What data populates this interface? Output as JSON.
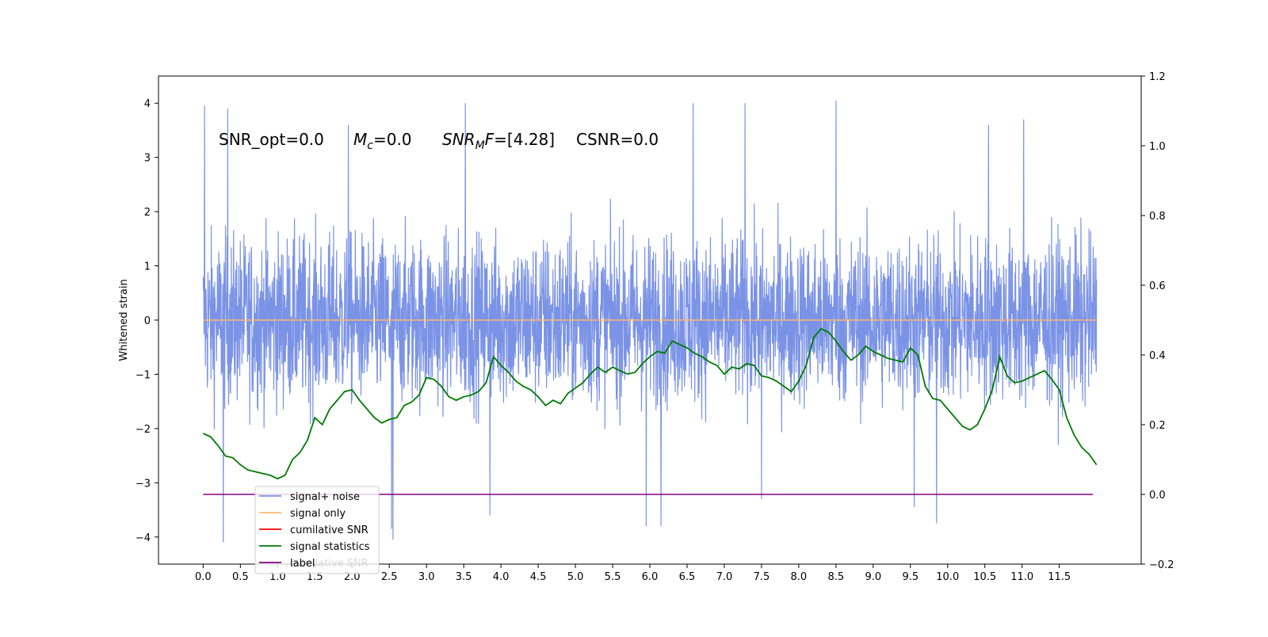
{
  "chart_data": {
    "type": "line",
    "title": "",
    "ylabel": "Whitened strain",
    "xlabel": "",
    "annotation": {
      "snr_opt": "SNR_opt=0.0",
      "mc_symbol": "M",
      "mc_sub": "c",
      "mc_value": "=0.0",
      "snr_mf_symbol": "SNR",
      "snr_mf_sub": "M",
      "snr_mf_f": "F",
      "snr_mf_value": "=[4.28]",
      "csnr": "CSNR=0.0"
    },
    "xlim": [
      -0.6,
      12.6
    ],
    "ylim_left": [
      -4.5,
      4.5
    ],
    "ylim_right": [
      -0.2,
      1.2
    ],
    "x_ticks": [
      0.0,
      0.5,
      1.0,
      1.5,
      2.0,
      2.5,
      3.0,
      3.5,
      4.0,
      4.5,
      5.0,
      5.5,
      6.0,
      6.5,
      7.0,
      7.5,
      8.0,
      8.5,
      9.0,
      9.5,
      10.0,
      10.5,
      11.0,
      11.5
    ],
    "x_tick_labels": [
      "0.0",
      "0.5",
      "1.0",
      "1.5",
      "2.0",
      "2.5",
      "3.0",
      "3.5",
      "4.0",
      "4.5",
      "5.0",
      "5.5",
      "6.0",
      "6.5",
      "7.0",
      "7.5",
      "8.0",
      "8.5",
      "9.0",
      "9.5",
      "10.0",
      "10.5",
      "11.0",
      "11.5"
    ],
    "y_left_ticks": [
      -4,
      -3,
      -2,
      -1,
      0,
      1,
      2,
      3,
      4
    ],
    "y_left_tick_labels": [
      "−4",
      "−3",
      "−2",
      "−1",
      "0",
      "1",
      "2",
      "3",
      "4"
    ],
    "y_right_ticks": [
      -0.2,
      0.0,
      0.2,
      0.4,
      0.6,
      0.8,
      1.0,
      1.2
    ],
    "y_right_tick_labels": [
      "−0.2",
      "0.0",
      "0.2",
      "0.4",
      "0.6",
      "0.8",
      "1.0",
      "1.2"
    ],
    "grid": false,
    "legend_position": "lower-left",
    "noise": {
      "x_start": 0.0,
      "x_end": 12.0,
      "typical_envelope": [
        -2.0,
        2.0
      ],
      "peaks": [
        {
          "x": 0.02,
          "y": 3.95
        },
        {
          "x": 0.33,
          "y": 3.9
        },
        {
          "x": 1.95,
          "y": 3.6
        },
        {
          "x": 3.52,
          "y": 4.0
        },
        {
          "x": 6.58,
          "y": 4.0
        },
        {
          "x": 7.28,
          "y": 4.0
        },
        {
          "x": 8.5,
          "y": 4.05
        },
        {
          "x": 10.55,
          "y": 3.6
        },
        {
          "x": 11.02,
          "y": 3.7
        },
        {
          "x": 0.27,
          "y": -4.1
        },
        {
          "x": 2.53,
          "y": -3.85
        },
        {
          "x": 2.55,
          "y": -4.05
        },
        {
          "x": 5.95,
          "y": -3.8
        },
        {
          "x": 6.15,
          "y": -3.8
        },
        {
          "x": 9.85,
          "y": -3.75
        },
        {
          "x": 3.85,
          "y": -3.6
        },
        {
          "x": 9.55,
          "y": -3.45
        },
        {
          "x": 7.5,
          "y": -3.3
        }
      ]
    },
    "series": [
      {
        "name": "signal+ noise",
        "color": "#7b93e6",
        "axis": "left",
        "description_values": "dense noise"
      },
      {
        "name": "signal only",
        "color": "#ffb86e",
        "axis": "left",
        "x": [
          0.0,
          12.0
        ],
        "y": [
          0.0,
          0.0
        ]
      },
      {
        "name": "cumilative SNR",
        "color": "#ff0000",
        "axis": "right",
        "x": [],
        "y": []
      },
      {
        "name": "signal statistics",
        "color": "#007a00",
        "axis": "right",
        "x": [
          0.0,
          0.1,
          0.2,
          0.3,
          0.4,
          0.5,
          0.6,
          0.7,
          0.8,
          0.9,
          1.0,
          1.1,
          1.2,
          1.3,
          1.4,
          1.5,
          1.6,
          1.7,
          1.8,
          1.9,
          2.0,
          2.1,
          2.2,
          2.3,
          2.4,
          2.5,
          2.6,
          2.7,
          2.8,
          2.9,
          3.0,
          3.1,
          3.2,
          3.3,
          3.4,
          3.5,
          3.6,
          3.7,
          3.8,
          3.9,
          4.0,
          4.1,
          4.2,
          4.3,
          4.4,
          4.5,
          4.6,
          4.7,
          4.8,
          4.9,
          5.0,
          5.1,
          5.2,
          5.3,
          5.4,
          5.5,
          5.6,
          5.7,
          5.8,
          5.9,
          6.0,
          6.1,
          6.2,
          6.3,
          6.4,
          6.5,
          6.6,
          6.7,
          6.8,
          6.9,
          7.0,
          7.1,
          7.2,
          7.3,
          7.4,
          7.5,
          7.6,
          7.7,
          7.8,
          7.9,
          8.0,
          8.1,
          8.2,
          8.3,
          8.4,
          8.5,
          8.6,
          8.7,
          8.8,
          8.9,
          9.0,
          9.1,
          9.2,
          9.3,
          9.4,
          9.5,
          9.6,
          9.7,
          9.8,
          9.9,
          10.0,
          10.1,
          10.2,
          10.3,
          10.4,
          10.5,
          10.6,
          10.7,
          10.8,
          10.9,
          11.0,
          11.1,
          11.2,
          11.3,
          11.4,
          11.5,
          11.6,
          11.7,
          11.8,
          11.9,
          12.0
        ],
        "y": [
          0.175,
          0.165,
          0.14,
          0.11,
          0.105,
          0.085,
          0.07,
          0.065,
          0.06,
          0.055,
          0.045,
          0.055,
          0.1,
          0.12,
          0.155,
          0.22,
          0.2,
          0.245,
          0.27,
          0.295,
          0.3,
          0.27,
          0.245,
          0.22,
          0.205,
          0.215,
          0.22,
          0.255,
          0.265,
          0.285,
          0.335,
          0.33,
          0.31,
          0.28,
          0.27,
          0.28,
          0.285,
          0.295,
          0.32,
          0.395,
          0.37,
          0.35,
          0.325,
          0.31,
          0.3,
          0.28,
          0.255,
          0.27,
          0.26,
          0.29,
          0.305,
          0.32,
          0.345,
          0.365,
          0.35,
          0.365,
          0.355,
          0.345,
          0.35,
          0.375,
          0.395,
          0.41,
          0.405,
          0.44,
          0.43,
          0.42,
          0.405,
          0.395,
          0.38,
          0.37,
          0.345,
          0.365,
          0.36,
          0.375,
          0.37,
          0.34,
          0.335,
          0.325,
          0.31,
          0.295,
          0.325,
          0.37,
          0.45,
          0.475,
          0.465,
          0.44,
          0.41,
          0.385,
          0.4,
          0.425,
          0.41,
          0.4,
          0.39,
          0.385,
          0.38,
          0.42,
          0.4,
          0.31,
          0.275,
          0.27,
          0.245,
          0.22,
          0.195,
          0.185,
          0.2,
          0.245,
          0.3,
          0.395,
          0.34,
          0.32,
          0.325,
          0.335,
          0.345,
          0.355,
          0.33,
          0.3,
          0.22,
          0.17,
          0.135,
          0.115,
          0.085
        ]
      },
      {
        "name": "label",
        "color": "#800080",
        "axis": "right",
        "x": [
          0.0,
          11.95
        ],
        "y": [
          0.0,
          0.0
        ]
      }
    ],
    "legend_overlapped_text": "cumilative SNR"
  }
}
